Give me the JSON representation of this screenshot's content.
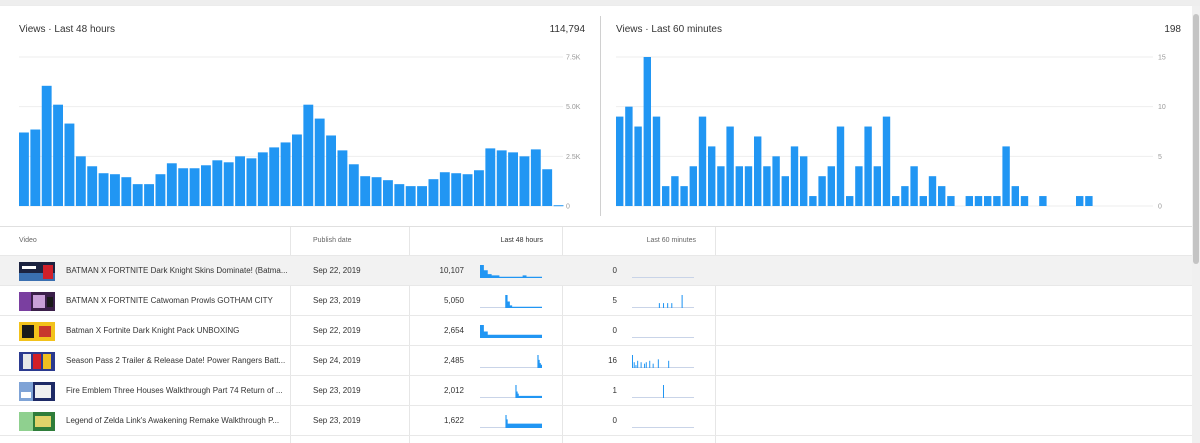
{
  "colors": {
    "bar": "#2196f3",
    "grid": "#eeeeee",
    "spark_base": "#c9d4e8"
  },
  "chart_data": [
    {
      "type": "bar",
      "title": "Views · Last 48 hours",
      "total": "114,794",
      "ylim": [
        0,
        7500
      ],
      "yticks": [
        {
          "value": 0,
          "label": "0"
        },
        {
          "value": 2500,
          "label": "2.5K"
        },
        {
          "value": 5000,
          "label": "5.0K"
        },
        {
          "value": 7500,
          "label": "7.5K"
        }
      ],
      "grid": true,
      "values": [
        3700,
        3850,
        6050,
        5100,
        4150,
        2500,
        2000,
        1650,
        1600,
        1450,
        1100,
        1100,
        1600,
        2150,
        1900,
        1900,
        2050,
        2300,
        2200,
        2500,
        2400,
        2700,
        2950,
        3200,
        3600,
        5100,
        4400,
        3550,
        2800,
        2100,
        1500,
        1450,
        1300,
        1100,
        1000,
        1000,
        1350,
        1700,
        1650,
        1600,
        1800,
        2900,
        2800,
        2700,
        2500,
        2850,
        1850,
        40
      ]
    },
    {
      "type": "bar",
      "title": "Views · Last 60 minutes",
      "total": "198",
      "ylim": [
        0,
        15
      ],
      "yticks": [
        {
          "value": 0,
          "label": "0"
        },
        {
          "value": 5,
          "label": "5"
        },
        {
          "value": 10,
          "label": "10"
        },
        {
          "value": 15,
          "label": "15"
        }
      ],
      "grid": true,
      "values": [
        9,
        10,
        8,
        15,
        9,
        2,
        3,
        2,
        4,
        9,
        6,
        4,
        8,
        4,
        4,
        7,
        4,
        5,
        3,
        6,
        5,
        1,
        3,
        4,
        8,
        1,
        4,
        8,
        4,
        9,
        1,
        2,
        4,
        1,
        3,
        2,
        1,
        0,
        1,
        1,
        1,
        1,
        6,
        2,
        1,
        0,
        1,
        0,
        0,
        0,
        1,
        1,
        0,
        0,
        0,
        0,
        0,
        0,
        0,
        0
      ]
    }
  ],
  "table": {
    "headers": {
      "video": "Video",
      "publish_date": "Publish date",
      "last48": "Last 48 hours",
      "last60": "Last 60 minutes"
    },
    "rows": [
      {
        "title": "BATMAN X FORTNITE Dark Knight Skins Dominate! (Batma...",
        "date": "Sep 22, 2019",
        "views48": "10,107",
        "views60": "0",
        "thumb": [
          "#1c2340",
          "#3a6fb0",
          "#d0202a"
        ],
        "spark48": [
          10,
          6,
          3,
          2,
          2,
          1,
          1,
          1,
          1,
          1,
          1,
          2,
          1,
          1,
          1,
          1
        ],
        "spark60": []
      },
      {
        "title": "BATMAN X FORTNITE Catwoman Prowls GOTHAM CITY",
        "date": "Sep 23, 2019",
        "views48": "5,050",
        "views60": "5",
        "thumb": [
          "#3b1f4a",
          "#7a3fa0",
          "#c9a0d8"
        ],
        "spark48": [
          0,
          0,
          0,
          0,
          0,
          0,
          0,
          0,
          0,
          0,
          0,
          10,
          5,
          2,
          1,
          1,
          1,
          1,
          1,
          1,
          1,
          1,
          1,
          1,
          1,
          1,
          1
        ],
        "spark60": [
          0,
          0,
          0,
          0,
          0,
          0,
          0,
          0,
          0,
          0,
          0,
          0,
          0,
          3,
          0,
          3,
          0,
          3,
          0,
          3,
          0,
          0,
          0,
          0,
          8,
          0,
          0,
          0,
          0,
          0
        ]
      },
      {
        "title": "Batman X Fortnite Dark Knight Pack UNBOXING",
        "date": "Sep 22, 2019",
        "views48": "2,654",
        "views60": "0",
        "thumb": [
          "#f2c21b",
          "#1a1a1a",
          "#c8372d"
        ],
        "spark48": [
          4,
          2,
          1,
          1,
          1,
          1,
          1,
          1,
          1,
          1,
          1,
          1,
          1,
          1,
          1,
          1
        ],
        "spark60": []
      },
      {
        "title": "Season Pass 2 Trailer & Release Date! Power Rangers Batt...",
        "date": "Sep 24, 2019",
        "views48": "2,485",
        "views60": "16",
        "thumb": [
          "#2b3a8f",
          "#e8e8e8",
          "#d21f26"
        ],
        "spark48": [
          0,
          0,
          0,
          0,
          0,
          0,
          0,
          0,
          0,
          0,
          0,
          0,
          0,
          0,
          0,
          0,
          0,
          0,
          0,
          0,
          0,
          0,
          0,
          0,
          0,
          0,
          0,
          0,
          0,
          0,
          0,
          0,
          0,
          0,
          0,
          0,
          0,
          0,
          0,
          0,
          0,
          0,
          0,
          0,
          0,
          0,
          0,
          0,
          0,
          0,
          8,
          5,
          3,
          2
        ],
        "spark60": [
          9,
          4,
          2,
          5,
          0,
          4,
          0,
          3,
          4,
          0,
          5,
          0,
          3,
          0,
          0,
          6,
          0,
          0,
          0,
          0,
          0,
          5,
          0,
          0,
          0,
          0,
          0,
          0,
          0,
          0,
          0,
          0,
          0,
          0,
          0,
          0
        ]
      },
      {
        "title": "Fire Emblem Three Houses Walkthrough Part 74 Return of ...",
        "date": "Sep 23, 2019",
        "views48": "2,012",
        "views60": "1",
        "thumb": [
          "#1e2a66",
          "#7fa3d6",
          "#f0f0f0"
        ],
        "spark48": [
          0,
          0,
          0,
          0,
          0,
          0,
          0,
          0,
          0,
          0,
          0,
          0,
          0,
          0,
          0,
          0,
          0,
          0,
          0,
          0,
          0,
          0,
          0,
          0,
          0,
          0,
          0,
          0,
          0,
          0,
          0,
          0,
          6,
          3,
          2,
          1,
          1,
          1,
          1,
          1,
          1,
          1,
          1,
          1,
          1,
          1,
          1,
          1,
          1,
          1,
          1,
          1,
          1,
          1,
          1,
          1
        ],
        "spark60": [
          0,
          0,
          0,
          0,
          0,
          0,
          0,
          0,
          0,
          0,
          0,
          0,
          0,
          0,
          0,
          0,
          0,
          0,
          0,
          0,
          8,
          0,
          0,
          0,
          0,
          0,
          0,
          0,
          0,
          0,
          0,
          0,
          0,
          0,
          0,
          0,
          0,
          0,
          0,
          0
        ]
      },
      {
        "title": "Legend of Zelda Link's Awakening Remake Walkthrough P...",
        "date": "Sep 23, 2019",
        "views48": "1,622",
        "views60": "0",
        "thumb": [
          "#2f7d3a",
          "#8fd08f",
          "#e0d36a"
        ],
        "spark48": [
          0,
          0,
          0,
          0,
          0,
          0,
          0,
          0,
          0,
          0,
          0,
          0,
          0,
          0,
          0,
          0,
          0,
          0,
          0,
          0,
          0,
          0,
          0,
          3,
          2,
          1,
          1,
          1,
          1,
          1,
          1,
          1,
          1,
          1,
          1,
          1,
          1,
          1,
          1,
          1,
          1,
          1,
          1,
          1,
          1,
          1,
          1,
          1,
          1,
          1,
          1,
          1,
          1,
          1,
          1,
          1
        ],
        "spark60": []
      }
    ]
  }
}
